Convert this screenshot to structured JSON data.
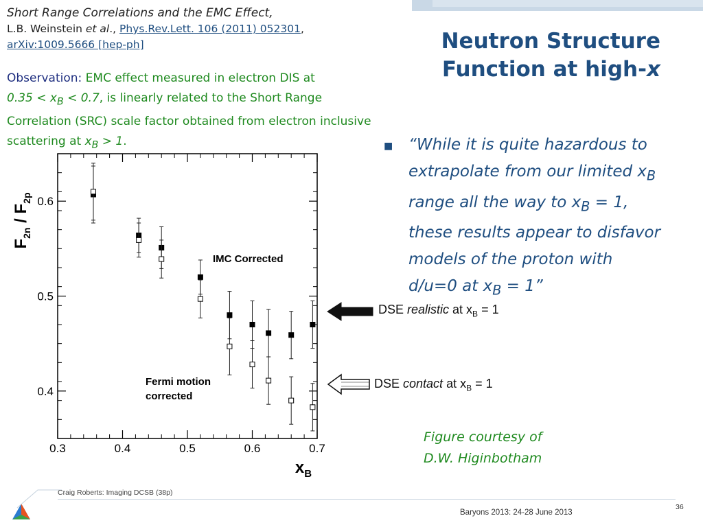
{
  "title_lines": [
    "Neutron Structure",
    "Function at high-"
  ],
  "title_x": "x",
  "reference": {
    "line1": "Short Range Correlations and the EMC Effect,",
    "authors": "L.B. Weinstein ",
    "etal": "et al",
    "etal_tail": ".,",
    "journal": "Phys.Rev.Lett. 106 (2011) 052301",
    "journal_tail": ",",
    "arxiv": "arXiv:1009.5666 [hep-ph]"
  },
  "observation": {
    "label": "Observation:",
    "part1": " EMC effect measured in electron DIS at",
    "range_a": "0.35 < x",
    "range_sub": "B",
    "range_b": " < 0.7",
    "part2": ", is linearly related to the Short Range Correlation (SRC) scale factor obtained from electron inclusive scattering at ",
    "x": "x",
    "x_sub": "B",
    "gt": " > 1",
    "end": "."
  },
  "quote": {
    "l1": "“While it is quite hazardous to",
    "l2a": "extrapolate from our limited x",
    "l2sub": "B",
    "l3a": "range all the way to x",
    "l3sub": "B",
    "l3b": " = 1,",
    "l4": "these results appear to disfavor",
    "l5": "models of the proton with",
    "l6a": "d/u=0  at  x",
    "l6sub": "B",
    "l6b": " = 1”"
  },
  "arrows": {
    "realistic_pre": "DSE ",
    "realistic_word": "realistic",
    "realistic_post": " at x",
    "contact_pre": "DSE ",
    "contact_word": "contact",
    "contact_post": " at x",
    "sub": "B",
    "eq": " = 1"
  },
  "courtesy": [
    "Figure courtesy of",
    "D.W. Higinbotham"
  ],
  "footer": {
    "left": "Craig Roberts: Imaging DCSB (38p)",
    "mid": "Baryons 2013: 24-28 June 2013",
    "page": "36"
  },
  "chart_data": {
    "type": "scatter",
    "ylabel": "F2n / F2p",
    "xlabel": "xB",
    "xlim": [
      0.3,
      0.7
    ],
    "ylim": [
      0.35,
      0.65
    ],
    "xticks": [
      "0.3",
      "0.4",
      "0.5",
      "0.6",
      "0.7"
    ],
    "yticks": [
      "0.4",
      "0.5",
      "0.6"
    ],
    "annotations": [
      "IMC Corrected",
      "Fermi motion",
      "corrected"
    ],
    "series": [
      {
        "marker": "filled-square",
        "points": [
          {
            "x": 0.355,
            "y": 0.607,
            "err": 0.03
          },
          {
            "x": 0.425,
            "y": 0.564,
            "err": 0.018
          },
          {
            "x": 0.46,
            "y": 0.551,
            "err": 0.022
          },
          {
            "x": 0.52,
            "y": 0.52,
            "err": 0.018
          },
          {
            "x": 0.565,
            "y": 0.48,
            "err": 0.025
          },
          {
            "x": 0.6,
            "y": 0.47,
            "err": 0.025
          },
          {
            "x": 0.625,
            "y": 0.461,
            "err": 0.025
          },
          {
            "x": 0.66,
            "y": 0.459,
            "err": 0.025
          },
          {
            "x": 0.693,
            "y": 0.47,
            "err": 0.025
          }
        ]
      },
      {
        "marker": "open-square",
        "points": [
          {
            "x": 0.355,
            "y": 0.61,
            "err": 0.03
          },
          {
            "x": 0.425,
            "y": 0.559,
            "err": 0.018
          },
          {
            "x": 0.46,
            "y": 0.539,
            "err": 0.02
          },
          {
            "x": 0.52,
            "y": 0.497,
            "err": 0.02
          },
          {
            "x": 0.565,
            "y": 0.447,
            "err": 0.03
          },
          {
            "x": 0.6,
            "y": 0.428,
            "err": 0.025
          },
          {
            "x": 0.625,
            "y": 0.411,
            "err": 0.025
          },
          {
            "x": 0.66,
            "y": 0.39,
            "err": 0.025
          },
          {
            "x": 0.693,
            "y": 0.383,
            "err": 0.025
          }
        ]
      }
    ]
  },
  "colors": {
    "title": "#1f4e80",
    "green": "#1f8a1f",
    "link": "#1f4e80"
  }
}
